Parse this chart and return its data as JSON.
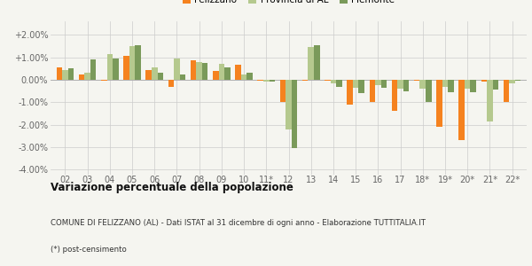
{
  "categories": [
    "02",
    "03",
    "04",
    "05",
    "06",
    "07",
    "08",
    "09",
    "10",
    "11*",
    "12",
    "13",
    "14",
    "15",
    "16",
    "17",
    "18*",
    "19*",
    "20*",
    "21*",
    "22*"
  ],
  "felizzano": [
    0.55,
    0.25,
    -0.05,
    1.05,
    0.45,
    -0.3,
    0.85,
    0.4,
    0.65,
    -0.05,
    -1.0,
    -0.05,
    -0.05,
    -1.1,
    -1.0,
    -1.4,
    -0.05,
    -2.1,
    -2.7,
    -0.1,
    -1.0
  ],
  "provincia_al": [
    0.45,
    0.3,
    1.15,
    1.5,
    0.55,
    0.95,
    0.8,
    0.7,
    0.25,
    -0.1,
    -2.2,
    1.45,
    -0.15,
    -0.35,
    -0.25,
    -0.4,
    -0.4,
    -0.3,
    -0.4,
    -1.85,
    -0.15
  ],
  "piemonte": [
    0.5,
    0.9,
    0.95,
    1.55,
    0.3,
    0.25,
    0.75,
    0.55,
    0.3,
    -0.1,
    -3.05,
    1.55,
    -0.3,
    -0.6,
    -0.35,
    -0.5,
    -1.0,
    -0.55,
    -0.55,
    -0.45,
    -0.05
  ],
  "color_felizzano": "#f5821f",
  "color_provincia": "#b5c98e",
  "color_piemonte": "#7a9a5a",
  "title": "Variazione percentuale della popolazione",
  "subtitle": "COMUNE DI FELIZZANO (AL) - Dati ISTAT al 31 dicembre di ogni anno - Elaborazione TUTTITALIA.IT",
  "footnote": "(*) post-censimento",
  "ylim": [
    -4.2,
    2.6
  ],
  "legend_labels": [
    "Felizzano",
    "Provincia di AL",
    "Piemonte"
  ],
  "background_color": "#f5f5f0"
}
